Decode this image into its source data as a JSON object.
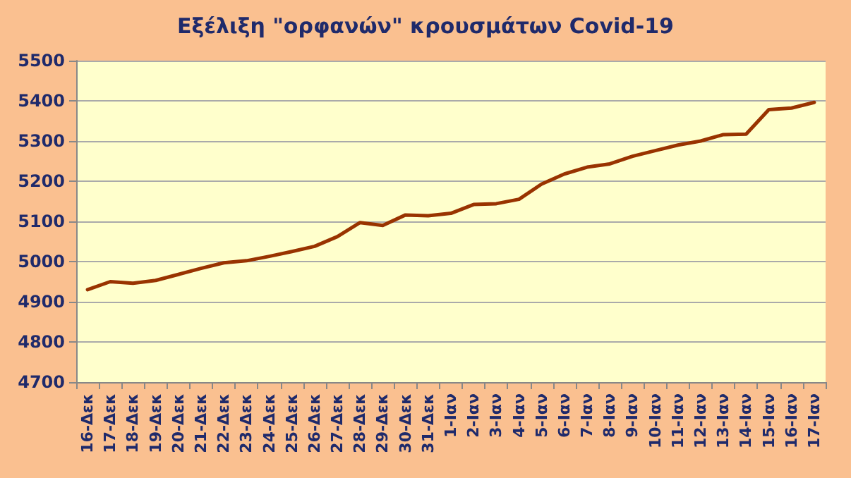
{
  "chart_data": {
    "type": "line",
    "title": "Εξέλιξη \"ορφανών\" κρουσμάτων Covid-19",
    "categories": [
      "16-Δεκ",
      "17-Δεκ",
      "18-Δεκ",
      "19-Δεκ",
      "20-Δεκ",
      "21-Δεκ",
      "22-Δεκ",
      "23-Δεκ",
      "24-Δεκ",
      "25-Δεκ",
      "26-Δεκ",
      "27-Δεκ",
      "28-Δεκ",
      "29-Δεκ",
      "30-Δεκ",
      "31-Δεκ",
      "1-Ιαν",
      "2-Ιαν",
      "3-Ιαν",
      "4-Ιαν",
      "5-Ιαν",
      "6-Ιαν",
      "7-Ιαν",
      "8-Ιαν",
      "9-Ιαν",
      "10-Ιαν",
      "11-Ιαν",
      "12-Ιαν",
      "13-Ιαν",
      "14-Ιαν",
      "15-Ιαν",
      "16-Ιαν",
      "17-Ιαν"
    ],
    "series": [
      {
        "color": "#993300",
        "values": [
          4930,
          4950,
          4946,
          4953,
          4968,
          4983,
          4997,
          5002,
          5013,
          5025,
          5038,
          5062,
          5097,
          5090,
          5116,
          5114,
          5120,
          5142,
          5144,
          5155,
          5193,
          5218,
          5235,
          5243,
          5262,
          5276,
          5290,
          5300,
          5316,
          5317,
          5378,
          5382,
          5396
        ]
      }
    ],
    "ylim": [
      4700,
      5500
    ],
    "yticks": [
      4700,
      4800,
      4900,
      5000,
      5100,
      5200,
      5300,
      5400,
      5500
    ],
    "grid": "y",
    "marker": "none",
    "line_style": "solid"
  }
}
